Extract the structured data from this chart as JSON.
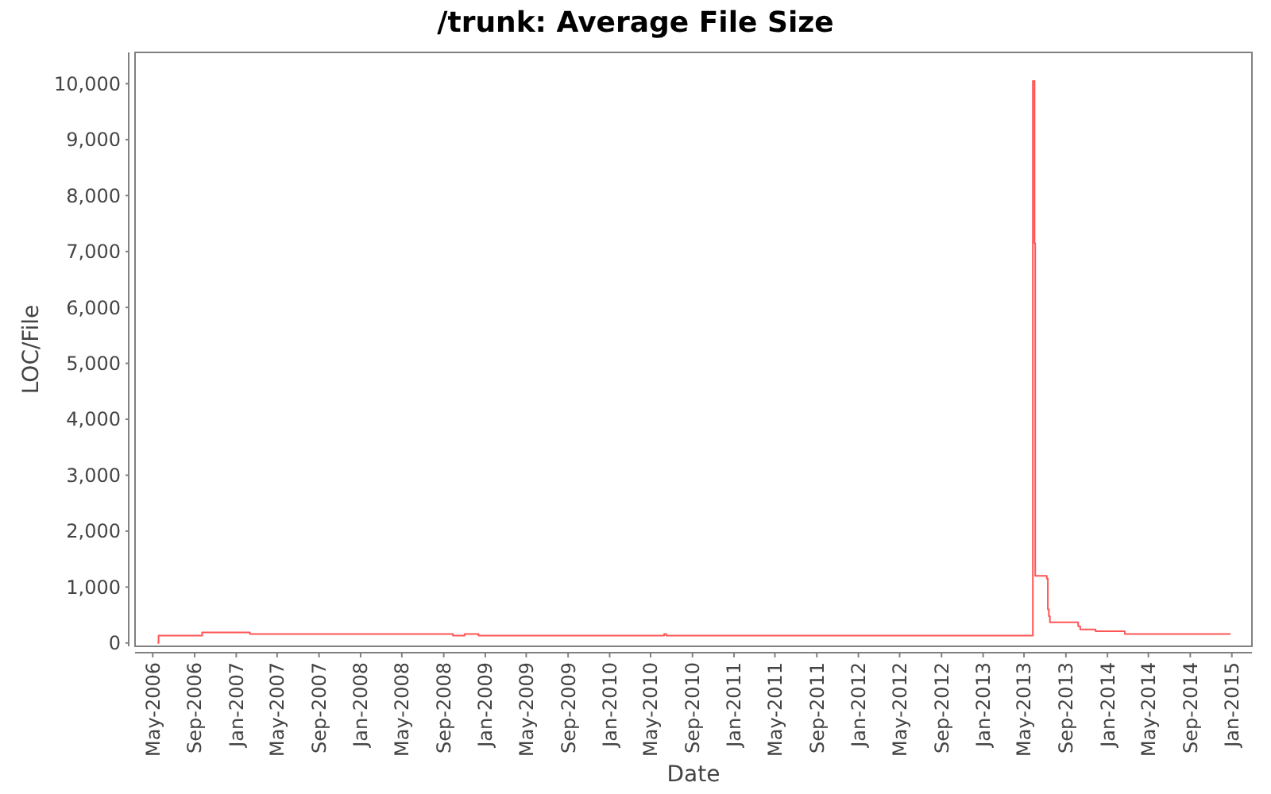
{
  "chart_data": {
    "type": "step",
    "title": "/trunk: Average File Size",
    "xlabel": "Date",
    "ylabel": "LOC/File",
    "xlim": [
      "2006-03-10",
      "2015-03-01"
    ],
    "ylim": [
      -60,
      10560
    ],
    "xticks": [
      {
        "value": "2006-05-01",
        "label": "May-2006"
      },
      {
        "value": "2006-09-01",
        "label": "Sep-2006"
      },
      {
        "value": "2007-01-01",
        "label": "Jan-2007"
      },
      {
        "value": "2007-05-01",
        "label": "May-2007"
      },
      {
        "value": "2007-09-01",
        "label": "Sep-2007"
      },
      {
        "value": "2008-01-01",
        "label": "Jan-2008"
      },
      {
        "value": "2008-05-01",
        "label": "May-2008"
      },
      {
        "value": "2008-09-01",
        "label": "Sep-2008"
      },
      {
        "value": "2009-01-01",
        "label": "Jan-2009"
      },
      {
        "value": "2009-05-01",
        "label": "May-2009"
      },
      {
        "value": "2009-09-01",
        "label": "Sep-2009"
      },
      {
        "value": "2010-01-01",
        "label": "Jan-2010"
      },
      {
        "value": "2010-05-01",
        "label": "May-2010"
      },
      {
        "value": "2010-09-01",
        "label": "Sep-2010"
      },
      {
        "value": "2011-01-01",
        "label": "Jan-2011"
      },
      {
        "value": "2011-05-01",
        "label": "May-2011"
      },
      {
        "value": "2011-09-01",
        "label": "Sep-2011"
      },
      {
        "value": "2012-01-01",
        "label": "Jan-2012"
      },
      {
        "value": "2012-05-01",
        "label": "May-2012"
      },
      {
        "value": "2012-09-01",
        "label": "Sep-2012"
      },
      {
        "value": "2013-01-01",
        "label": "Jan-2013"
      },
      {
        "value": "2013-05-01",
        "label": "May-2013"
      },
      {
        "value": "2013-09-01",
        "label": "Sep-2013"
      },
      {
        "value": "2014-01-01",
        "label": "Jan-2014"
      },
      {
        "value": "2014-05-01",
        "label": "May-2014"
      },
      {
        "value": "2014-09-01",
        "label": "Sep-2014"
      },
      {
        "value": "2015-01-01",
        "label": "Jan-2015"
      }
    ],
    "yticks": [
      {
        "value": 0,
        "label": "0"
      },
      {
        "value": 1000,
        "label": "1,000"
      },
      {
        "value": 2000,
        "label": "2,000"
      },
      {
        "value": 3000,
        "label": "3,000"
      },
      {
        "value": 4000,
        "label": "4,000"
      },
      {
        "value": 5000,
        "label": "5,000"
      },
      {
        "value": 6000,
        "label": "6,000"
      },
      {
        "value": 7000,
        "label": "7,000"
      },
      {
        "value": 8000,
        "label": "8,000"
      },
      {
        "value": 9000,
        "label": "9,000"
      },
      {
        "value": 10000,
        "label": "10,000"
      }
    ],
    "grid": false,
    "series": [
      {
        "color": "#ff5555",
        "x": [
          "2006-05-15",
          "2006-05-18",
          "2006-09-23",
          "2007-02-10",
          "2008-09-28",
          "2008-11-01",
          "2008-12-12",
          "2010-06-10",
          "2010-06-16",
          "2013-05-27",
          "2013-06-01",
          "2013-06-03",
          "2013-07-07",
          "2013-07-10",
          "2013-07-13",
          "2013-07-16",
          "2013-10-07",
          "2013-10-13",
          "2013-11-27",
          "2014-02-21",
          "2014-12-28"
        ],
        "values": [
          0,
          130,
          190,
          160,
          130,
          160,
          130,
          160,
          130,
          10050,
          7150,
          1200,
          1150,
          600,
          480,
          370,
          300,
          240,
          210,
          160,
          160
        ]
      }
    ]
  }
}
